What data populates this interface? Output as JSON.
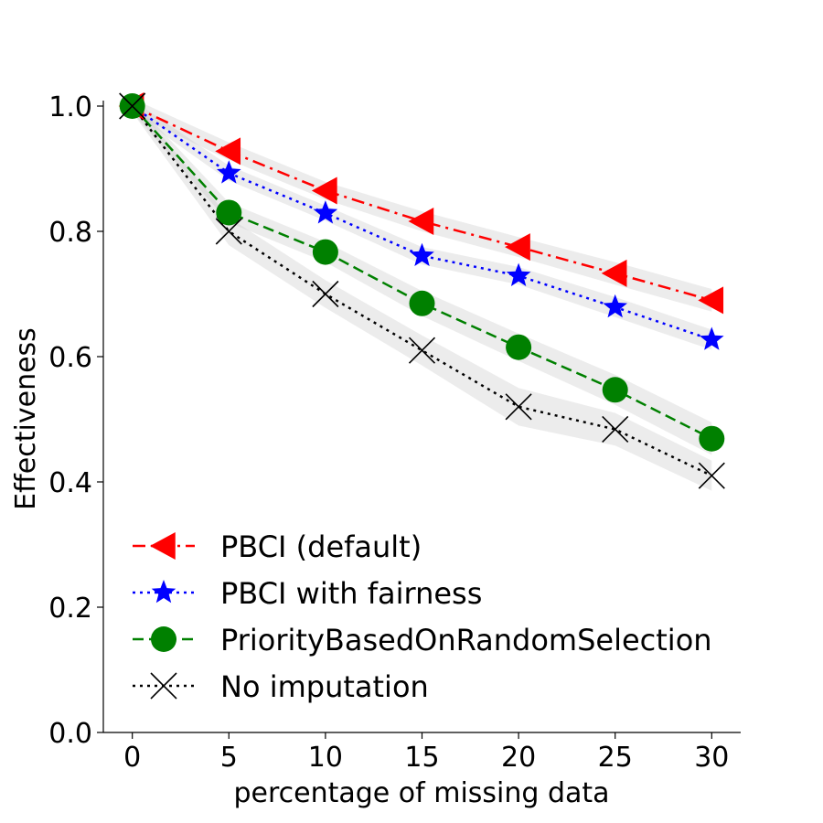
{
  "chart_data": {
    "type": "line",
    "title": "",
    "xlabel": "percentage of missing data",
    "ylabel": "Effectiveness",
    "x": [
      0,
      5,
      10,
      15,
      20,
      25,
      30
    ],
    "xlim": [
      -1.5,
      31.5
    ],
    "ylim": [
      0.0,
      1.0
    ],
    "xticks": [
      "0",
      "5",
      "10",
      "15",
      "20",
      "25",
      "30"
    ],
    "yticks": [
      "0.0",
      "0.2",
      "0.4",
      "0.6",
      "0.8",
      "1.0"
    ],
    "grid": false,
    "legend_position": "lower-left",
    "series": [
      {
        "name": "PBCI (default)",
        "color": "#ff0000",
        "marker": "triangle-left",
        "linestyle": "dash-dot",
        "values": [
          1.0,
          0.928,
          0.865,
          0.816,
          0.775,
          0.733,
          0.69
        ],
        "band": [
          0.012,
          0.014,
          0.014,
          0.016,
          0.016,
          0.018,
          0.018
        ]
      },
      {
        "name": "PBCI with fairness",
        "color": "#0000ff",
        "marker": "star",
        "linestyle": "dotted",
        "values": [
          1.0,
          0.893,
          0.829,
          0.761,
          0.729,
          0.679,
          0.627
        ],
        "band": [
          0.01,
          0.012,
          0.012,
          0.014,
          0.014,
          0.016,
          0.016
        ]
      },
      {
        "name": "PriorityBasedOnRandomSelection",
        "color": "#008000",
        "marker": "circle",
        "linestyle": "dashed",
        "values": [
          1.0,
          0.83,
          0.767,
          0.685,
          0.615,
          0.547,
          0.469
        ],
        "band": [
          0.01,
          0.016,
          0.016,
          0.02,
          0.022,
          0.024,
          0.026
        ]
      },
      {
        "name": "No imputation",
        "color": "#000000",
        "marker": "x",
        "linestyle": "dotted",
        "values": [
          1.0,
          0.8,
          0.7,
          0.61,
          0.52,
          0.484,
          0.41
        ],
        "band": [
          0.01,
          0.022,
          0.022,
          0.024,
          0.03,
          0.026,
          0.024
        ]
      }
    ]
  }
}
